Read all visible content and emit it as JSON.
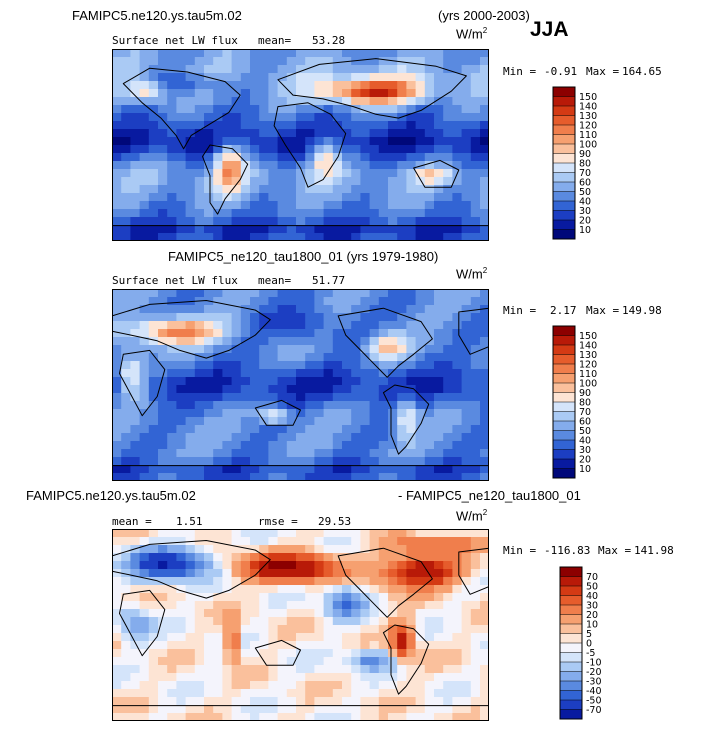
{
  "header": {
    "case_title": "FAMIPC5.ne120.ys.tau5m.02",
    "case_years": "(yrs 2000-2003)",
    "season": "JJA"
  },
  "chart_data": [
    {
      "type": "heatmap",
      "title": "FAMIPC5.ne120.ys.tau5m.02 (yrs 2000-2003)",
      "field_label": "Surface net LW flux",
      "mean_label": "mean=",
      "mean_value": "53.28",
      "units": "W/m",
      "units_exp": "2",
      "min_label": "Min =",
      "min_value": "-0.91",
      "max_label": "Max =",
      "max_value": "164.65",
      "levels": [
        "150",
        "140",
        "130",
        "120",
        "110",
        "100",
        "90",
        "80",
        "70",
        "60",
        "50",
        "40",
        "30",
        "20",
        "10"
      ],
      "colors": [
        "#8c0000",
        "#b81a08",
        "#d43a14",
        "#e65c2c",
        "#f07e4c",
        "#f6a070",
        "#fac09c",
        "#fde4d4",
        "#d4e4fa",
        "#aacaf4",
        "#84acec",
        "#5a8ae0",
        "#3264d4",
        "#1c3ec2",
        "#081aa0",
        "#00087a"
      ]
    },
    {
      "type": "heatmap",
      "title": "FAMIPC5_ne120_tau1800_01 (yrs 1979-1980)",
      "field_label": "Surface net LW flux",
      "mean_label": "mean=",
      "mean_value": "51.77",
      "units": "W/m",
      "units_exp": "2",
      "min_label": "Min =",
      "min_value": "2.17",
      "max_label": "Max =",
      "max_value": "149.98",
      "levels": [
        "150",
        "140",
        "130",
        "120",
        "110",
        "100",
        "90",
        "80",
        "70",
        "60",
        "50",
        "40",
        "30",
        "20",
        "10"
      ],
      "colors": [
        "#8c0000",
        "#b81a08",
        "#d43a14",
        "#e65c2c",
        "#f07e4c",
        "#f6a070",
        "#fac09c",
        "#fde4d4",
        "#d4e4fa",
        "#aacaf4",
        "#84acec",
        "#5a8ae0",
        "#3264d4",
        "#1c3ec2",
        "#081aa0",
        "#00087a"
      ]
    },
    {
      "type": "heatmap",
      "title": "FAMIPC5.ne120.ys.tau5m.02 - FAMIPC5_ne120_tau1800_01",
      "title_left": "FAMIPC5.ne120.ys.tau5m.02",
      "title_right": "- FAMIPC5_ne120_tau1800_01",
      "mean_label": "mean =",
      "mean_value": "1.51",
      "rmse_label": "rmse =",
      "rmse_value": "29.53",
      "units": "W/m",
      "units_exp": "2",
      "min_label": "Min =",
      "min_value": "-116.83",
      "max_label": "Max =",
      "max_value": "141.98",
      "levels": [
        "70",
        "50",
        "40",
        "30",
        "20",
        "10",
        "5",
        "0",
        "-5",
        "-10",
        "-20",
        "-30",
        "-40",
        "-50",
        "-70"
      ],
      "colors": [
        "#8c0000",
        "#b81a08",
        "#d43a14",
        "#e65c2c",
        "#f07e4c",
        "#f6a070",
        "#fac09c",
        "#fde4d4",
        "#f4f4fc",
        "#d4e4fa",
        "#aacaf4",
        "#84acec",
        "#5a8ae0",
        "#3264d4",
        "#1c3ec2",
        "#081aa0"
      ]
    }
  ]
}
